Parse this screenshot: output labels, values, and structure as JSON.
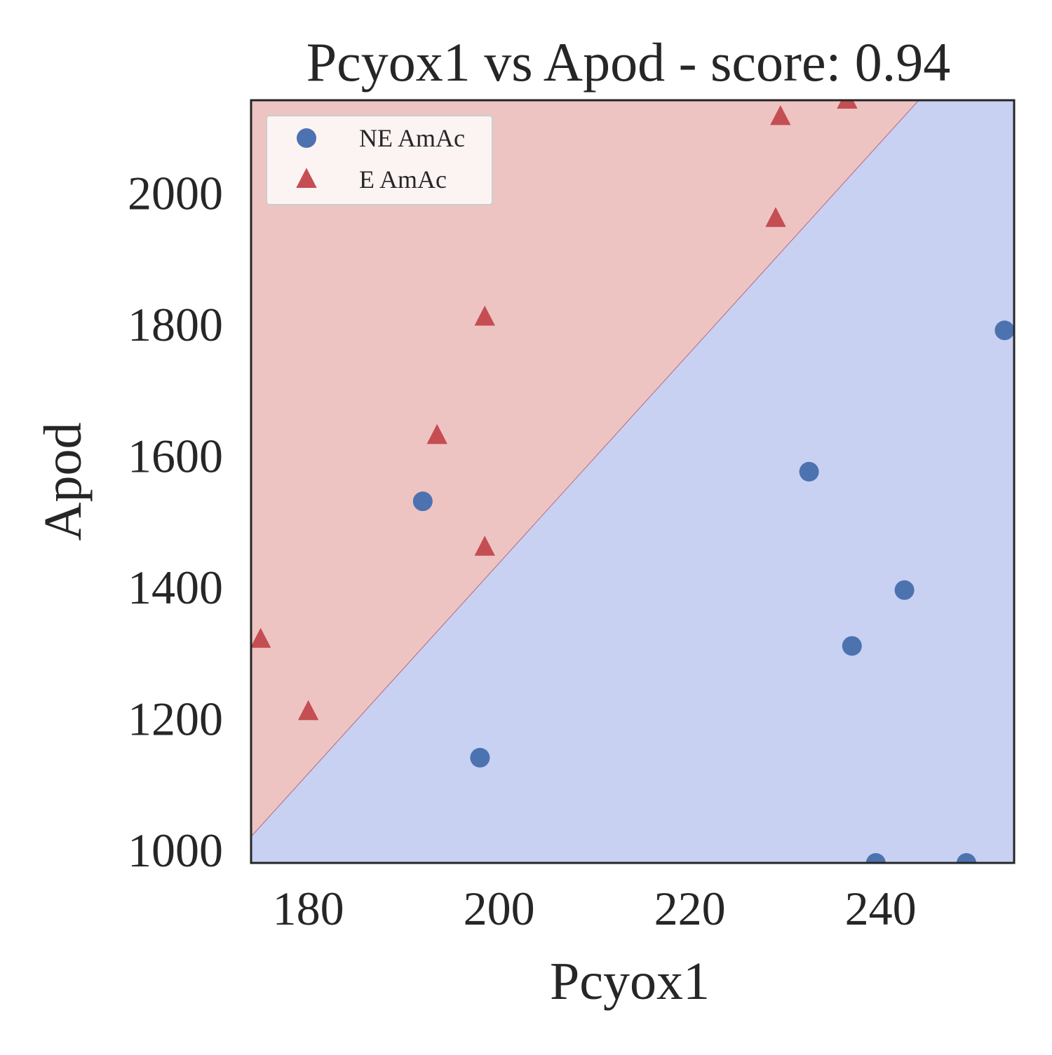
{
  "chart_data": {
    "type": "scatter",
    "title": "Pcyox1 vs Apod - score: 0.94",
    "xlabel": "Pcyox1",
    "ylabel": "Apod",
    "xlim": [
      174,
      254
    ],
    "ylim": [
      980,
      2140
    ],
    "xticks": [
      180,
      200,
      220,
      240
    ],
    "yticks": [
      1000,
      1200,
      1400,
      1600,
      1800,
      2000
    ],
    "grid": false,
    "legend_position": "top-left",
    "decision_boundary": {
      "description_points": [
        [
          174,
          1020
        ],
        [
          244,
          2140
        ]
      ],
      "upper_region_color": "#eec4c3",
      "lower_region_color": "#c8d1f2",
      "line_color": "#b06a84"
    },
    "series": [
      {
        "name": "NE AmAc",
        "marker": "circle",
        "color": "#4c72b0",
        "points": [
          [
            192,
            1530
          ],
          [
            198,
            1140
          ],
          [
            232.5,
            1575
          ],
          [
            237,
            1310
          ],
          [
            242.5,
            1395
          ],
          [
            239.5,
            980
          ],
          [
            249,
            980
          ],
          [
            253,
            1790
          ]
        ]
      },
      {
        "name": "E AmAc",
        "marker": "triangle",
        "color": "#c44e52",
        "points": [
          [
            175,
            1320
          ],
          [
            180,
            1210
          ],
          [
            193.5,
            1630
          ],
          [
            198.5,
            1460
          ],
          [
            198.5,
            1810
          ],
          [
            229,
            1960
          ],
          [
            229.5,
            2115
          ],
          [
            236.5,
            2140
          ]
        ]
      }
    ]
  }
}
